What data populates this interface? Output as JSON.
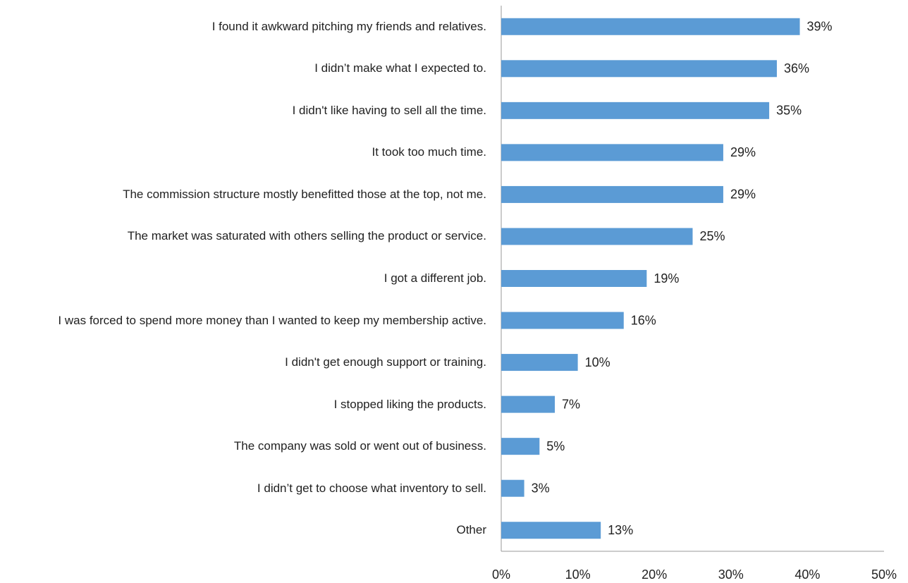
{
  "chart_data": {
    "type": "bar",
    "orientation": "horizontal",
    "categories": [
      "I found it awkward pitching my friends and relatives.",
      "I didn’t make what I expected to.",
      "I didn't like having to sell all the time.",
      "It took too much time.",
      "The commission structure mostly benefitted those at the top, not me.",
      "The market was saturated with others selling the product or service.",
      "I got a different job.",
      "I was forced to spend more money than I wanted to keep my membership active.",
      "I didn't get enough support or training.",
      "I stopped liking the products.",
      "The company was sold or went out of business.",
      "I didn’t get to choose what inventory to sell.",
      "Other"
    ],
    "values": [
      39,
      36,
      35,
      29,
      29,
      25,
      19,
      16,
      10,
      7,
      5,
      3,
      13
    ],
    "value_labels": [
      "39%",
      "36%",
      "35%",
      "29%",
      "29%",
      "25%",
      "19%",
      "16%",
      "10%",
      "7%",
      "5%",
      "3%",
      "13%"
    ],
    "color": "#5b9bd5",
    "xlim": [
      0,
      50
    ],
    "xticks": [
      {
        "value": 0,
        "label": "0%"
      },
      {
        "value": 10,
        "label": "10%"
      },
      {
        "value": 20,
        "label": "20%"
      },
      {
        "value": 30,
        "label": "30%"
      },
      {
        "value": 40,
        "label": "40%"
      },
      {
        "value": 50,
        "label": "50%"
      }
    ],
    "grid": false
  }
}
